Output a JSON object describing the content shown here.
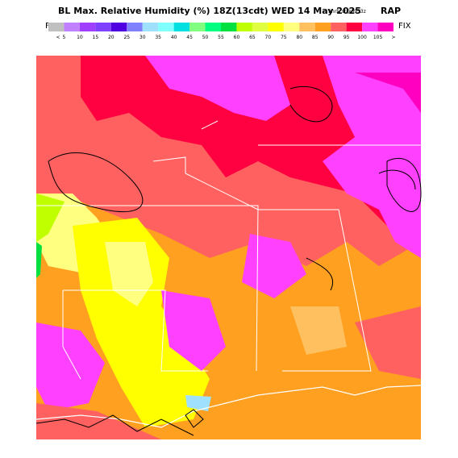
{
  "header": {
    "title": "BL Max. Relative Humidity (%) 18Z(13cdt) WED 14 May 2025",
    "forecast": "9hrFcst@0953z",
    "model": "RAP",
    "fix_left": "FIX",
    "fix_right": "FIX"
  },
  "legend": {
    "labels": [
      "<",
      5,
      10,
      15,
      20,
      25,
      30,
      35,
      40,
      45,
      50,
      55,
      60,
      65,
      70,
      75,
      80,
      85,
      90,
      95,
      100,
      105,
      ">"
    ],
    "colors": [
      "#c0c0c0",
      "#c080ff",
      "#a040ff",
      "#8040ff",
      "#5000e0",
      "#8080ff",
      "#a0e0ff",
      "#80ffff",
      "#00e0e0",
      "#80ff80",
      "#00ff80",
      "#00e040",
      "#c0ff00",
      "#e0ff40",
      "#ffff00",
      "#ffff80",
      "#ffc060",
      "#ffa020",
      "#ff6060",
      "#ff0040",
      "#ff40ff",
      "#ff00c0"
    ]
  }
}
